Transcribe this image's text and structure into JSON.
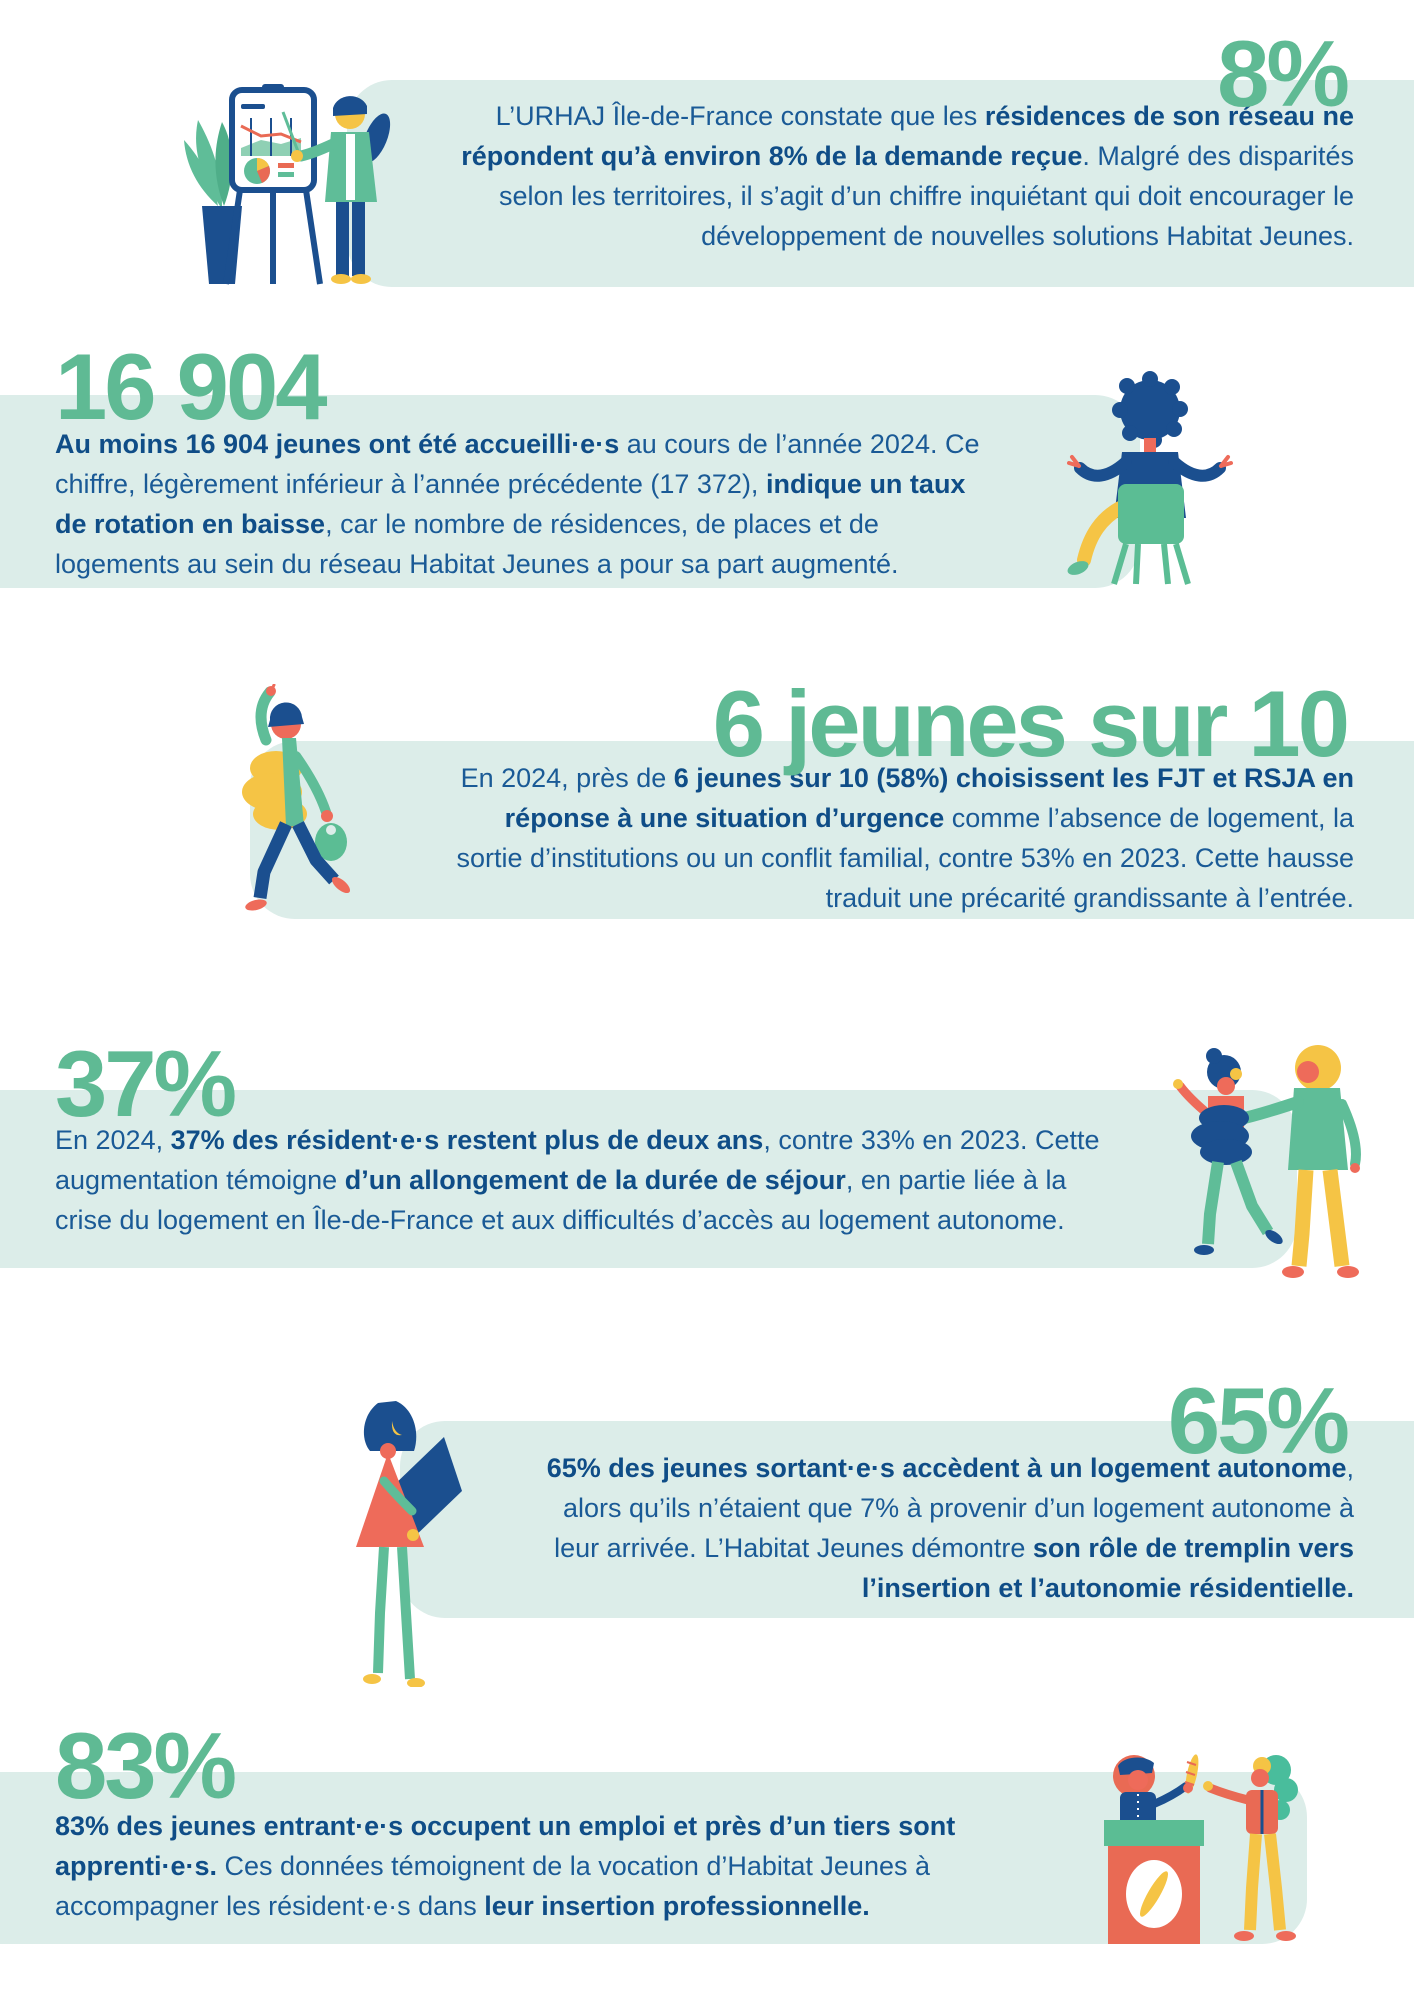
{
  "palette": {
    "stat_green": "#5FBA94",
    "band_mint": "#DCEDE9",
    "text_blue": "#1A5A96",
    "text_blue_bold": "#0F4D87",
    "illo_navy": "#1B4F8F",
    "illo_green": "#5FBD98",
    "illo_teal": "#5BBD94",
    "illo_yellow": "#F5C445",
    "illo_salmon": "#EE6B5A",
    "illo_red": "#E96A54"
  },
  "sections": [
    {
      "stat": "8%",
      "align": "right",
      "illustration": "presenter-at-flipchart",
      "lines": [
        [
          {
            "t": "L’URHAJ Île-de-France constate que les ",
            "b": false
          },
          {
            "t": "résidences de son réseau ne",
            "b": true
          }
        ],
        [
          {
            "t": "répondent qu’à environ 8% de la demande reçue",
            "b": true
          },
          {
            "t": ". Malgré des disparités",
            "b": false
          }
        ],
        [
          {
            "t": "selon les territoires, il s’agit d’un chiffre inquiétant qui doit encourager le",
            "b": false
          }
        ],
        [
          {
            "t": "développement de nouvelles solutions Habitat Jeunes.",
            "b": false
          }
        ]
      ]
    },
    {
      "stat": "16 904",
      "align": "left",
      "illustration": "person-sitting-on-chair",
      "lines": [
        [
          {
            "t": "Au moins 16 904 jeunes ont été accueilli·e·s",
            "b": true
          },
          {
            "t": " au cours de l’année 2024. Ce",
            "b": false
          }
        ],
        [
          {
            "t": "chiffre, légèrement inférieur à l’année précédente (17 372), ",
            "b": false
          },
          {
            "t": "indique un taux",
            "b": true
          }
        ],
        [
          {
            "t": "de rotation en baisse",
            "b": true
          },
          {
            "t": ", car le nombre de résidences, de places et de",
            "b": false
          }
        ],
        [
          {
            "t": "logements au sein du réseau Habitat Jeunes a pour sa part augmenté.",
            "b": false
          }
        ]
      ]
    },
    {
      "stat": "6 jeunes sur 10",
      "align": "right",
      "illustration": "walking-person-with-bag",
      "lines": [
        [
          {
            "t": "En 2024, près de ",
            "b": false
          },
          {
            "t": "6 jeunes sur 10 (58%) choisissent les FJT et RSJA en",
            "b": true
          }
        ],
        [
          {
            "t": "réponse à une situation d’urgence",
            "b": true
          },
          {
            "t": " comme l’absence de logement, la",
            "b": false
          }
        ],
        [
          {
            "t": "sortie d’institutions ou un conflit familial, contre 53% en 2023. Cette hausse",
            "b": false
          }
        ],
        [
          {
            "t": "traduit une précarité grandissante à l’entrée.",
            "b": false
          }
        ]
      ]
    },
    {
      "stat": "37%",
      "align": "left",
      "illustration": "two-friends-walking",
      "lines": [
        [
          {
            "t": "En 2024, ",
            "b": false
          },
          {
            "t": "37% des résident·e·s restent plus de deux ans",
            "b": true
          },
          {
            "t": ", contre 33% en 2023. Cette",
            "b": false
          }
        ],
        [
          {
            "t": "augmentation témoigne ",
            "b": false
          },
          {
            "t": "d’un allongement de la durée de séjour",
            "b": true
          },
          {
            "t": ", en partie liée à la",
            "b": false
          }
        ],
        [
          {
            "t": "crise du logement en Île-de-France et aux difficultés d’accès au logement autonome.",
            "b": false
          }
        ]
      ]
    },
    {
      "stat": "65%",
      "align": "right",
      "illustration": "person-carrying-board",
      "lines": [
        [
          {
            "t": "65% des jeunes sortant·e·s accèdent à un logement autonome",
            "b": true
          },
          {
            "t": ",",
            "b": false
          }
        ],
        [
          {
            "t": "alors qu’ils n’étaient que 7% à provenir d’un logement autonome à",
            "b": false
          }
        ],
        [
          {
            "t": "leur arrivée.  L’Habitat Jeunes démontre ",
            "b": false
          },
          {
            "t": "son rôle de tremplin vers",
            "b": true
          }
        ],
        [
          {
            "t": "l’insertion et l’autonomie résidentielle.",
            "b": true
          }
        ]
      ]
    },
    {
      "stat": "83%",
      "align": "left",
      "illustration": "baker-podium-scene",
      "lines": [
        [
          {
            "t": "83% des jeunes entrant·e·s occupent un emploi et près d’un tiers sont",
            "b": true
          }
        ],
        [
          {
            "t": "apprenti·e·s.",
            "b": true
          },
          {
            "t": " Ces données témoignent de la vocation d’Habitat Jeunes à",
            "b": false
          }
        ],
        [
          {
            "t": "accompagner les résident·e·s dans ",
            "b": false
          },
          {
            "t": "leur insertion professionnelle.",
            "b": true
          }
        ]
      ]
    }
  ]
}
